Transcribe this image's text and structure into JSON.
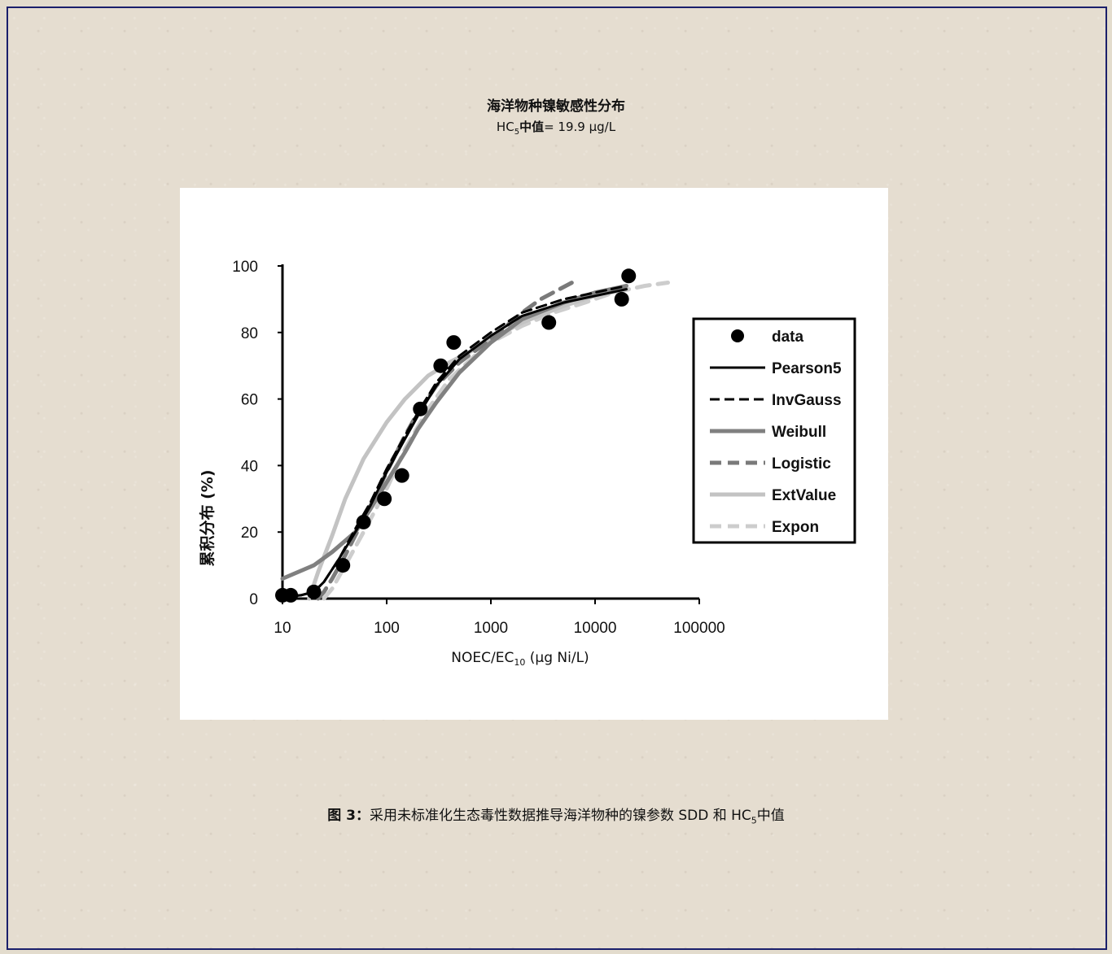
{
  "figure": {
    "title": "海洋物种镍敏感性分布",
    "subtitle_prefix": "HC",
    "subtitle_sub": "5",
    "subtitle_bold": "中值",
    "subtitle_value": "= 19.9 µg/L",
    "caption_label": "图 3",
    "caption_sep": "：",
    "caption_text": "采用未标准化生态毒性数据推导海洋物种的镍参数 SDD 和 HC",
    "caption_sub": "5",
    "caption_tail": "中值"
  },
  "chart_data": {
    "type": "line",
    "xscale": "log",
    "xlim": [
      10,
      100000
    ],
    "ylim": [
      0,
      100
    ],
    "x_ticks": [
      "10",
      "100",
      "1000",
      "10000",
      "100000"
    ],
    "x_tick_values": [
      10,
      100,
      1000,
      10000,
      100000
    ],
    "y_ticks": [
      "0",
      "20",
      "40",
      "60",
      "80",
      "100"
    ],
    "y_tick_values": [
      0,
      20,
      40,
      60,
      80,
      100
    ],
    "xlabel_main": "NOEC/EC",
    "xlabel_sub": "10",
    "xlabel_tail": " (µg Ni/L)",
    "ylabel": "累积分布 (%)",
    "legend_position": "right",
    "grid": false,
    "points": {
      "name": "data",
      "x": [
        10,
        12,
        20,
        38,
        60,
        95,
        140,
        210,
        330,
        440,
        3600,
        18000,
        21000
      ],
      "y": [
        1,
        1,
        2,
        10,
        23,
        30,
        37,
        57,
        70,
        77,
        83,
        90,
        97
      ]
    },
    "series": [
      {
        "name": "Pearson5",
        "style": "solid",
        "color": "#000000",
        "width": 3,
        "x": [
          10,
          15,
          20,
          25,
          35,
          50,
          70,
          100,
          150,
          200,
          300,
          500,
          1000,
          2000,
          5000,
          10000,
          20000
        ],
        "y": [
          0.5,
          1,
          2,
          5,
          12,
          20,
          28,
          38,
          48,
          55,
          64,
          72,
          79,
          85,
          89,
          91,
          93
        ]
      },
      {
        "name": "InvGauss",
        "style": "dashed",
        "color": "#000000",
        "width": 3,
        "x": [
          10,
          15,
          20,
          25,
          35,
          50,
          70,
          100,
          150,
          200,
          300,
          500,
          1000,
          2000,
          5000,
          10000,
          20000
        ],
        "y": [
          0.5,
          1,
          2,
          5,
          12,
          21,
          29,
          39,
          49,
          56,
          65,
          73,
          80,
          86,
          90,
          92,
          94
        ]
      },
      {
        "name": "Weibull",
        "style": "solid",
        "color": "#808080",
        "width": 5,
        "x": [
          10,
          20,
          30,
          50,
          70,
          100,
          150,
          200,
          300,
          500,
          1000,
          2000,
          5000,
          10000,
          20000
        ],
        "y": [
          6,
          10,
          14,
          20,
          27,
          35,
          44,
          51,
          59,
          68,
          77,
          84,
          89,
          92,
          94
        ]
      },
      {
        "name": "Logistic",
        "style": "dashed",
        "color": "#7a7a7a",
        "width": 5,
        "x": [
          22,
          25,
          30,
          40,
          50,
          70,
          100,
          150,
          200,
          300,
          500,
          1000,
          2000,
          3000,
          6000
        ],
        "y": [
          0,
          2,
          6,
          13,
          19,
          28,
          38,
          49,
          56,
          64,
          71,
          78,
          86,
          90,
          95
        ]
      },
      {
        "name": "ExtValue",
        "style": "solid",
        "color": "#c3c3c3",
        "width": 5,
        "x": [
          18,
          22,
          30,
          40,
          60,
          100,
          150,
          250,
          400,
          700,
          1000,
          2000,
          5000,
          10000,
          20000
        ],
        "y": [
          0,
          8,
          19,
          30,
          42,
          53,
          60,
          67,
          71,
          75,
          78,
          83,
          88,
          91,
          93
        ]
      },
      {
        "name": "Expon",
        "style": "dashed",
        "color": "#cdcdcd",
        "width": 5,
        "x": [
          25,
          30,
          40,
          60,
          100,
          150,
          250,
          400,
          700,
          1000,
          2000,
          4000,
          8000,
          15000,
          30000,
          50000
        ],
        "y": [
          0,
          3,
          10,
          20,
          33,
          45,
          57,
          66,
          73,
          77,
          82,
          86,
          89,
          92,
          94,
          95
        ]
      }
    ]
  }
}
